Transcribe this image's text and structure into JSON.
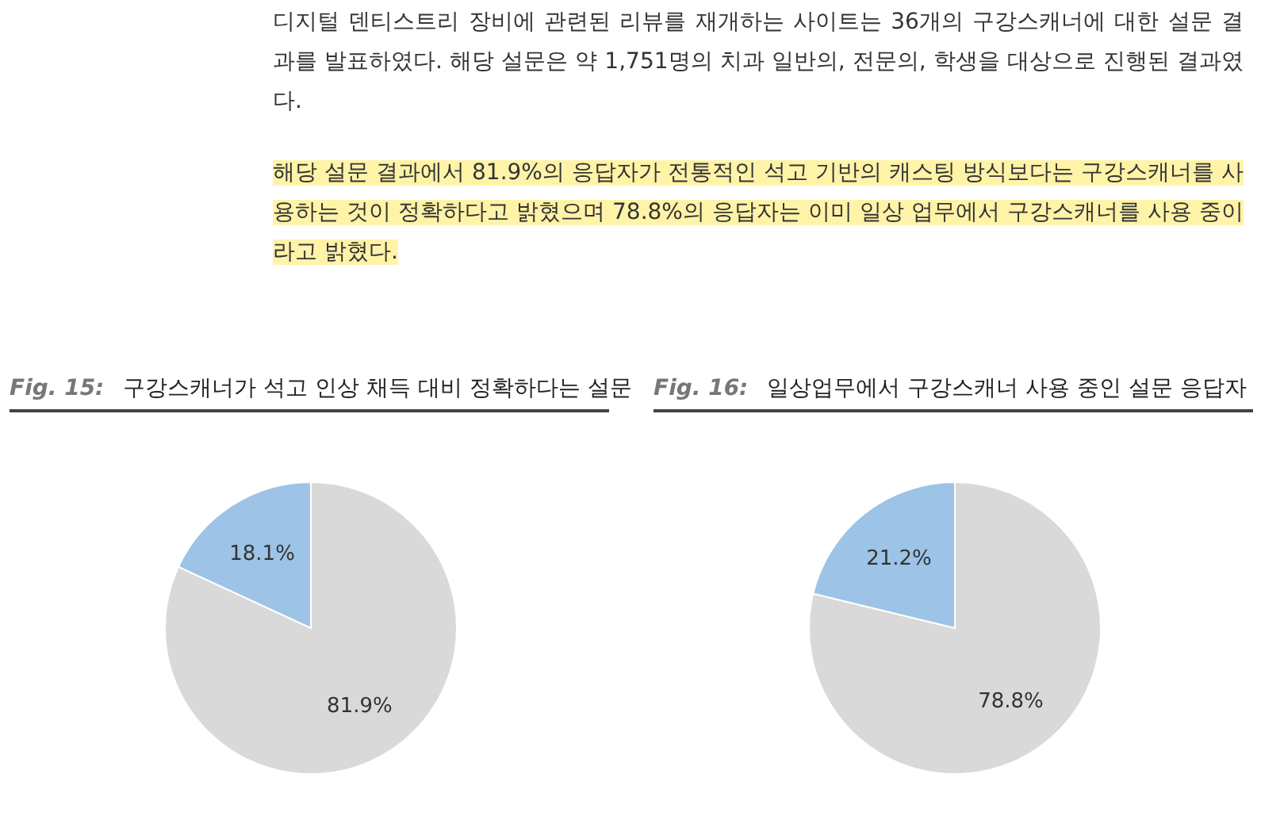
{
  "chart_data": [
    {
      "type": "other",
      "annotations": [
        "디지털 덴티스트리 장비에 관련된 리뷰를 재개하는 사이트는 36개의 구강스캐너에 대한 설문 결과를 발표하였다. 해당 설문은 약 1,751명의 치과 일반의, 전문의, 학생을 대상으로 진행된 결과였다.",
        "해당 설문 결과에서 81.9%의 응답자가 전통적인 석고 기반의 캐스팅 방식보다는 구강스캐너를 사용하는 것이 정확하다고 밝혔으며 78.8%의 응답자는 이미 일상 업무에서 구강스캐너를 사용 중이라고 밝혔다."
      ]
    },
    {
      "type": "pie",
      "title": "Fig. 15:",
      "subtitle": "구강스캐너가 석고 인상 채득 대비 정확하다는 설문",
      "categories": [
        null,
        null
      ],
      "values": [
        81.9,
        18.1
      ],
      "colors": [
        "#d9d9d9",
        "#9dc3e6"
      ],
      "value_labels": [
        "81.9%",
        "18.1%"
      ]
    },
    {
      "type": "pie",
      "title": "Fig. 16:",
      "subtitle": "일상업무에서 구강스캐너 사용 중인 설문 응답자",
      "categories": [
        null,
        null
      ],
      "values": [
        78.8,
        21.2
      ],
      "colors": [
        "#d9d9d9",
        "#9dc3e6"
      ],
      "value_labels": [
        "78.8%",
        "21.2%"
      ]
    }
  ]
}
